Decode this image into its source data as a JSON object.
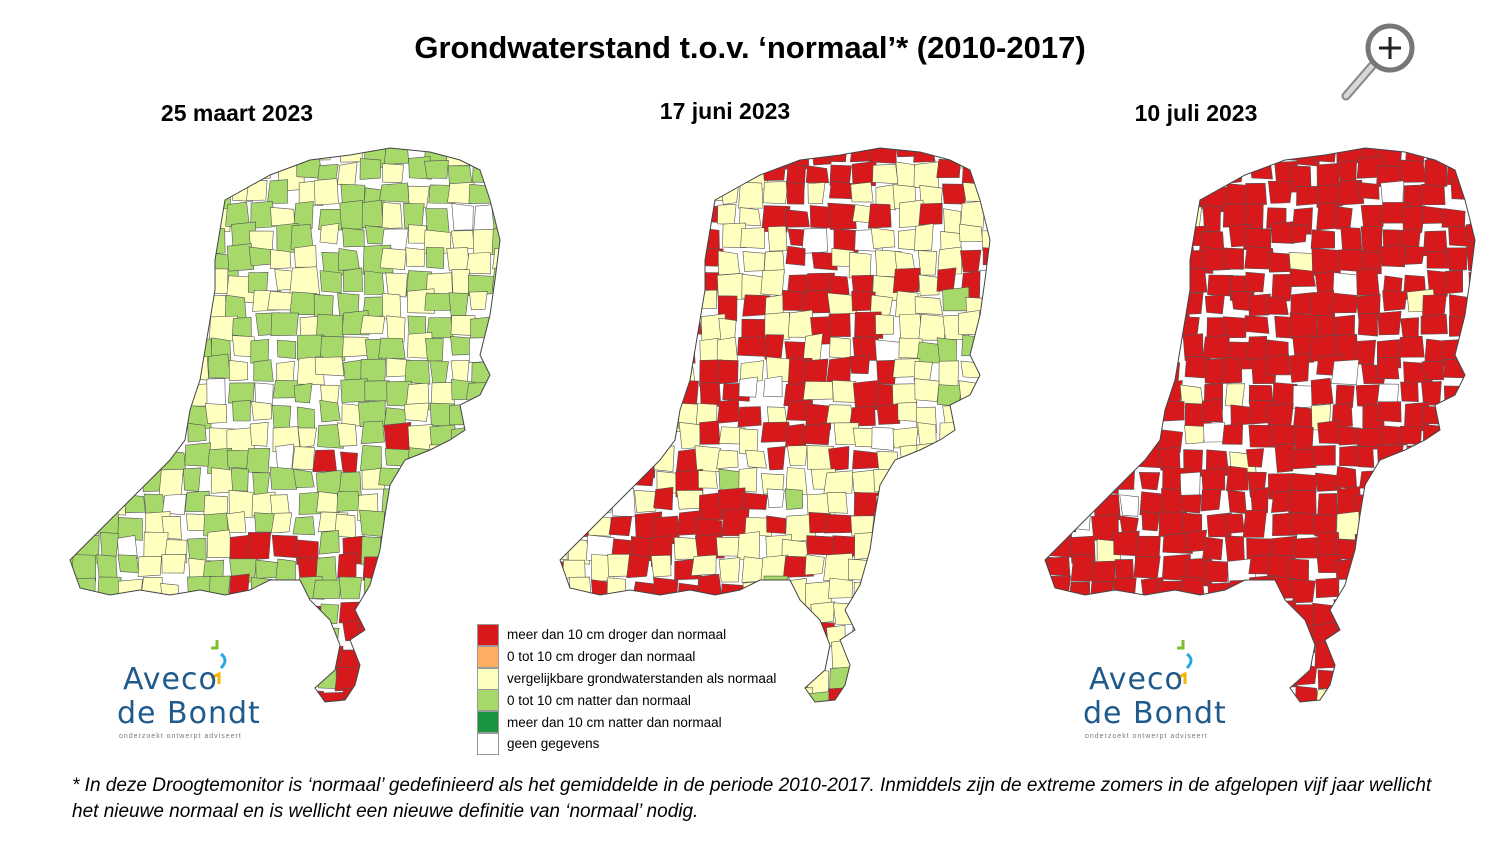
{
  "title": "Grondwaterstand t.o.v. ‘normaal’* (2010-2017)",
  "zoom_icon": "magnifier-plus-icon",
  "maps": [
    {
      "date": "25 maart 2023",
      "dominant": "natter"
    },
    {
      "date": "17 juni 2023",
      "dominant": "vergelijkbaar"
    },
    {
      "date": "10 juli 2023",
      "dominant": "droger"
    }
  ],
  "colors": {
    "droger_10": "#d7191c",
    "droger_0_10": "#fdae61",
    "vergelijkbaar": "#ffffc0",
    "natter_0_10": "#a6d96a",
    "natter_10": "#1a9641",
    "geen": "#ffffff",
    "border": "#555555",
    "logo_blue": "#1f5a8c"
  },
  "legend": [
    {
      "label": "meer dan 10 cm droger dan normaal",
      "color": "#d7191c"
    },
    {
      "label": "0 tot 10 cm droger dan normaal",
      "color": "#fdae61"
    },
    {
      "label": "vergelijkbare grondwaterstanden als normaal",
      "color": "#ffffc0"
    },
    {
      "label": "0 tot 10 cm natter dan normaal",
      "color": "#a6d96a"
    },
    {
      "label": "meer dan 10 cm natter dan normaal",
      "color": "#1a9641"
    },
    {
      "label": "geen gegevens",
      "color": "#ffffff"
    }
  ],
  "logo": {
    "line1": "Aveco",
    "line2": "de Bondt",
    "tagline": "onderzoekt   ontwerpt   adviseert"
  },
  "footnote": "* In deze Droogtemonitor is ‘normaal’ gedefinieerd als het gemiddelde in de periode 2010-2017. Inmiddels zijn de extreme zomers in de afgelopen vijf jaar wellicht het nieuwe normaal en is wellicht een nieuwe definitie van ‘normaal’ nodig."
}
